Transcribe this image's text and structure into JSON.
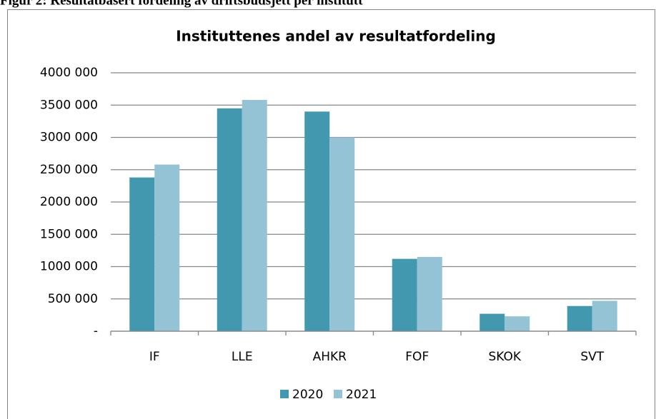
{
  "caption": "Figur 2: Resultatbasert fordeling av driftsbudsjett per institutt",
  "chart_data": {
    "type": "bar",
    "title": "Instituttenes andel av resultatfordeling",
    "categories": [
      "IF",
      "LLE",
      "AHKR",
      "FOF",
      "SKOK",
      "SVT"
    ],
    "series": [
      {
        "name": "2020",
        "color": "#4198af",
        "values": [
          2380000,
          3450000,
          3400000,
          1120000,
          270000,
          390000
        ]
      },
      {
        "name": "2021",
        "color": "#93c3d5",
        "values": [
          2580000,
          3580000,
          3000000,
          1150000,
          230000,
          470000
        ]
      }
    ],
    "ylim": [
      0,
      4000000
    ],
    "yticks": [
      {
        "value": 0,
        "label": "-"
      },
      {
        "value": 500000,
        "label": "500 000"
      },
      {
        "value": 1000000,
        "label": "1000 000"
      },
      {
        "value": 1500000,
        "label": "1500 000"
      },
      {
        "value": 2000000,
        "label": "2000 000"
      },
      {
        "value": 2500000,
        "label": "2500 000"
      },
      {
        "value": 3000000,
        "label": "3000 000"
      },
      {
        "value": 3500000,
        "label": "3500 000"
      },
      {
        "value": 4000000,
        "label": "4000 000"
      }
    ],
    "grid": true,
    "legend": "bottom"
  }
}
